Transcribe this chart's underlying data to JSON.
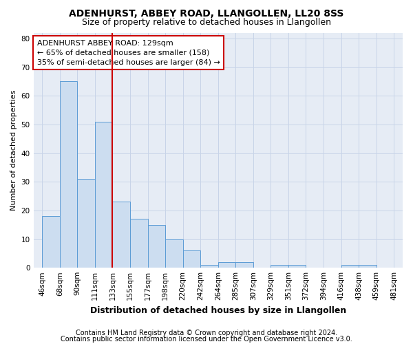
{
  "title1": "ADENHURST, ABBEY ROAD, LLANGOLLEN, LL20 8SS",
  "title2": "Size of property relative to detached houses in Llangollen",
  "xlabel": "Distribution of detached houses by size in Llangollen",
  "ylabel": "Number of detached properties",
  "bar_labels": [
    "46sqm",
    "68sqm",
    "90sqm",
    "111sqm",
    "133sqm",
    "155sqm",
    "177sqm",
    "198sqm",
    "220sqm",
    "242sqm",
    "264sqm",
    "285sqm",
    "307sqm",
    "329sqm",
    "351sqm",
    "372sqm",
    "394sqm",
    "416sqm",
    "438sqm",
    "459sqm",
    "481sqm"
  ],
  "bar_values": [
    18,
    65,
    31,
    51,
    23,
    17,
    15,
    10,
    6,
    1,
    2,
    2,
    0,
    1,
    1,
    0,
    0,
    1,
    1,
    0
  ],
  "bar_color": "#ccddf0",
  "bar_edge_color": "#5b9bd5",
  "vline_x": 4,
  "vline_color": "#cc0000",
  "annotation_line1": "ADENHURST ABBEY ROAD: 129sqm",
  "annotation_line2": "← 65% of detached houses are smaller (158)",
  "annotation_line3": "35% of semi-detached houses are larger (84) →",
  "annotation_box_color": "#ffffff",
  "annotation_box_edge": "#cc0000",
  "ylim": [
    0,
    82
  ],
  "yticks": [
    0,
    10,
    20,
    30,
    40,
    50,
    60,
    70,
    80
  ],
  "grid_color": "#c8d4e8",
  "bg_color": "#e6ecf5",
  "footer1": "Contains HM Land Registry data © Crown copyright and database right 2024.",
  "footer2": "Contains public sector information licensed under the Open Government Licence v3.0.",
  "title1_fontsize": 10,
  "title2_fontsize": 9,
  "xlabel_fontsize": 9,
  "ylabel_fontsize": 8,
  "tick_fontsize": 7.5,
  "annotation_fontsize": 8,
  "footer_fontsize": 7
}
